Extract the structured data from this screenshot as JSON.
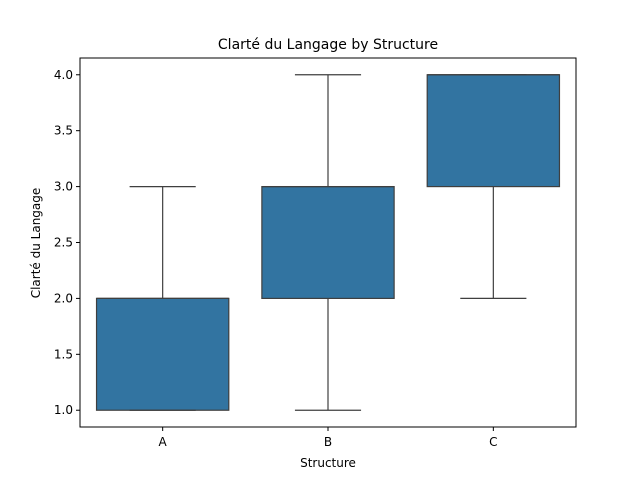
{
  "chart_data": {
    "type": "box",
    "title": "Clarté du Langage by Structure",
    "xlabel": "Structure",
    "ylabel": "Clarté du Langage",
    "categories": [
      "A",
      "B",
      "C"
    ],
    "boxes": [
      {
        "category": "A",
        "whisker_low": 1.0,
        "q1": 1.0,
        "median": 2.0,
        "q3": 2.0,
        "whisker_high": 3.0
      },
      {
        "category": "B",
        "whisker_low": 1.0,
        "q1": 2.0,
        "median": 3.0,
        "q3": 3.0,
        "whisker_high": 4.0
      },
      {
        "category": "C",
        "whisker_low": 2.0,
        "q1": 3.0,
        "median": 4.0,
        "q3": 4.0,
        "whisker_high": 4.0
      }
    ],
    "ylim": [
      0.85,
      4.15
    ],
    "yticks": [
      "1.0",
      "1.5",
      "2.0",
      "2.5",
      "3.0",
      "3.5",
      "4.0"
    ],
    "grid": false,
    "colors": {
      "box_fill": "#3274a1",
      "box_edge": "#3f3f3f",
      "axis": "#000000"
    }
  }
}
